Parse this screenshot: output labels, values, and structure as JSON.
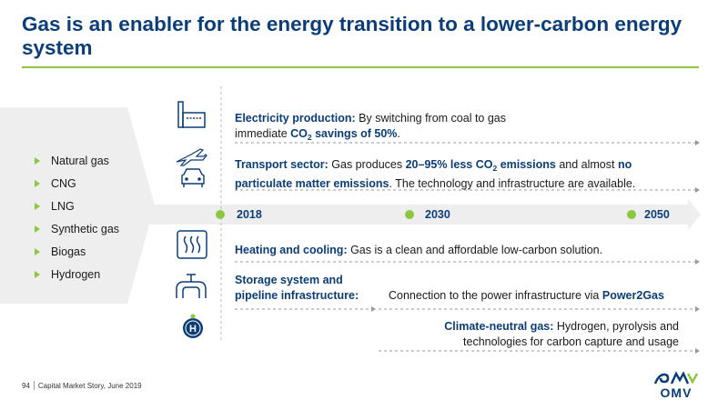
{
  "title": "Gas is an enabler for the energy transition to a lower-carbon energy system",
  "gases": [
    "Natural gas",
    "CNG",
    "LNG",
    "Synthetic gas",
    "Biogas",
    "Hydrogen"
  ],
  "electricity": {
    "label": "Electricity production:",
    "text1": " By switching from coal to gas",
    "text2": "immediate ",
    "co2_a": "CO",
    "co2_b": "2",
    "co2_c": " savings of 50%",
    "end": "."
  },
  "transport": {
    "label": "Transport sector:",
    "text1": " Gas produces ",
    "hl1": "20–95% less CO",
    "hl1_sub": "2",
    "hl1_end": " emissions",
    "text2": " and almost ",
    "hl2": "no",
    "hl3": "particulate matter emissions",
    "text3": ". The technology and infrastructure are available."
  },
  "timeline": [
    "2018",
    "2030",
    "2050"
  ],
  "heating": {
    "label": "Heating and cooling:",
    "text": " Gas is a clean and affordable low-carbon solution."
  },
  "storage": {
    "label1": "Storage system and",
    "label2": "pipeline infrastructure:",
    "text": "Connection to the power infrastructure via ",
    "hl": "Power2Gas"
  },
  "climate": {
    "label": "Climate-neutral gas:",
    "text1": " Hydrogen, pyrolysis and",
    "text2": "technologies for carbon capture and usage"
  },
  "footer": {
    "page": "94",
    "text": "Capital Market Story, June 2019"
  },
  "logo": "OMV",
  "colors": {
    "navy": "#0b3d79",
    "green": "#8dc63f",
    "band": "#eeeeee"
  }
}
